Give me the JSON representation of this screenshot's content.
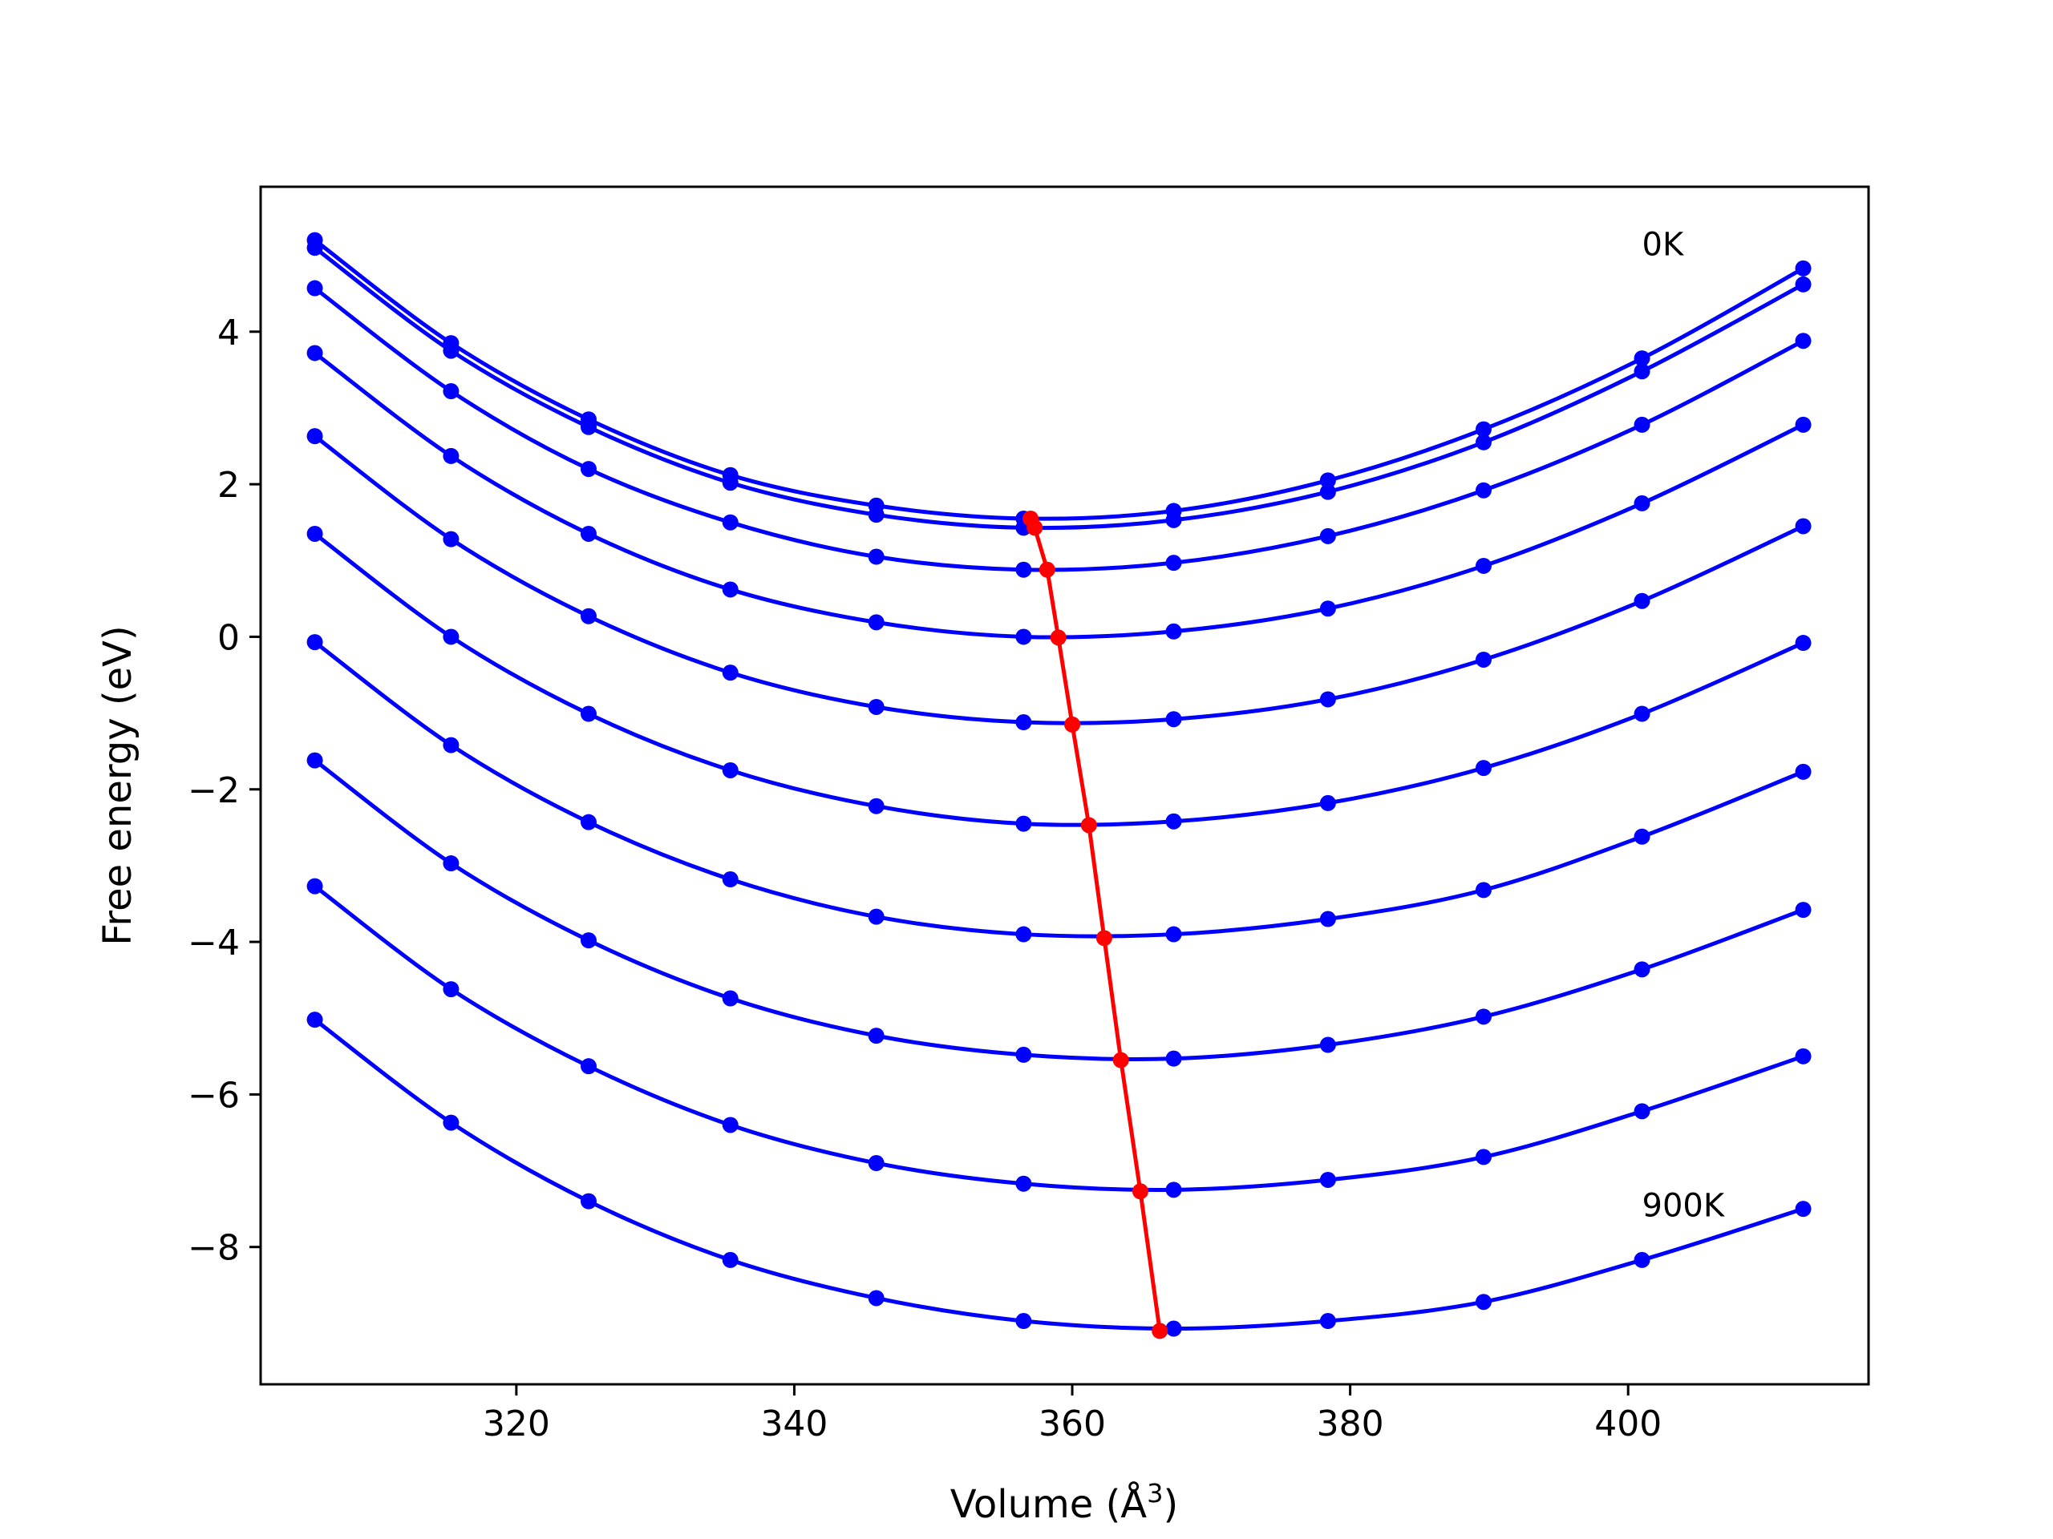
{
  "chart_data": {
    "type": "line",
    "title": "",
    "xlabel": "Volume (Å³)",
    "ylabel": "Free energy (eV)",
    "xlim": [
      301.6,
      417.3
    ],
    "ylim": [
      -9.8,
      5.9
    ],
    "xticks": [
      320,
      340,
      360,
      380,
      400
    ],
    "yticks": [
      -8,
      -6,
      -4,
      -2,
      0,
      2,
      4
    ],
    "xtick_labels": [
      "320",
      "340",
      "360",
      "380",
      "400"
    ],
    "ytick_labels": [
      "−8",
      "−6",
      "−4",
      "−2",
      "0",
      "2",
      "4"
    ],
    "grid": false,
    "legend": null,
    "colors": {
      "curves": "#0000ff",
      "minima": "#ff0000"
    },
    "x": [
      305.5,
      315.3,
      325.2,
      335.4,
      345.9,
      356.5,
      367.3,
      378.4,
      389.6,
      401.0,
      412.6
    ],
    "series": [
      {
        "values": [
          5.2,
          3.85,
          2.85,
          2.12,
          1.72,
          1.55,
          1.65,
          2.05,
          2.72,
          3.65,
          4.83
        ]
      },
      {
        "values": [
          5.1,
          3.75,
          2.75,
          2.02,
          1.6,
          1.43,
          1.53,
          1.9,
          2.55,
          3.48,
          4.62
        ]
      },
      {
        "values": [
          4.57,
          3.22,
          2.2,
          1.5,
          1.05,
          0.88,
          0.97,
          1.32,
          1.92,
          2.78,
          3.88
        ]
      },
      {
        "values": [
          3.72,
          2.37,
          1.35,
          0.62,
          0.19,
          0.0,
          0.07,
          0.37,
          0.93,
          1.75,
          2.78
        ]
      },
      {
        "values": [
          2.63,
          1.28,
          0.27,
          -0.47,
          -0.92,
          -1.12,
          -1.08,
          -0.82,
          -0.3,
          0.47,
          1.45
        ]
      },
      {
        "values": [
          1.35,
          0.0,
          -1.01,
          -1.75,
          -2.22,
          -2.45,
          -2.42,
          -2.18,
          -1.72,
          -1.01,
          -0.08
        ]
      },
      {
        "values": [
          -0.07,
          -1.42,
          -2.43,
          -3.18,
          -3.67,
          -3.9,
          -3.9,
          -3.7,
          -3.32,
          -2.62,
          -1.77
        ]
      },
      {
        "values": [
          -1.62,
          -2.97,
          -3.98,
          -4.74,
          -5.23,
          -5.48,
          -5.53,
          -5.35,
          -4.98,
          -4.36,
          -3.58
        ]
      },
      {
        "values": [
          -3.27,
          -4.62,
          -5.63,
          -6.4,
          -6.9,
          -7.17,
          -7.25,
          -7.12,
          -6.82,
          -6.22,
          -5.5
        ]
      },
      {
        "values": [
          -5.02,
          -6.37,
          -7.4,
          -8.17,
          -8.67,
          -8.97,
          -9.07,
          -8.97,
          -8.72,
          -8.17,
          -7.5
        ]
      }
    ],
    "minima": {
      "x": [
        357.0,
        357.3,
        358.2,
        359.0,
        360.0,
        361.2,
        362.3,
        363.5,
        364.9,
        366.3
      ],
      "y": [
        1.55,
        1.43,
        0.88,
        -0.01,
        -1.15,
        -2.47,
        -3.95,
        -5.55,
        -7.27,
        -9.1
      ]
    },
    "annotations": [
      {
        "text": "0K",
        "x": 401,
        "y": 5.0
      },
      {
        "text": "900K",
        "x": 401,
        "y": -7.6
      }
    ]
  }
}
